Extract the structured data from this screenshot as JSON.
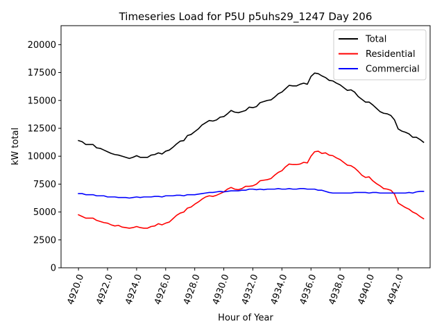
{
  "chart_data": {
    "type": "line",
    "title": "Timeseries Load for P5U p5uhs29_1247  Day 206",
    "xlabel": "Hour of Year",
    "ylabel": "kW total",
    "xlim": [
      4918.8,
      4944.2
    ],
    "ylim": [
      0,
      21700
    ],
    "xticks": [
      4920,
      4922,
      4924,
      4926,
      4928,
      4930,
      4932,
      4934,
      4936,
      4938,
      4940,
      4942
    ],
    "xtick_labels": [
      "4920.0",
      "4922.0",
      "4924.0",
      "4926.0",
      "4928.0",
      "4930.0",
      "4932.0",
      "4934.0",
      "4936.0",
      "4938.0",
      "4940.0",
      "4942.0"
    ],
    "yticks": [
      0,
      2500,
      5000,
      7500,
      10000,
      12500,
      15000,
      17500,
      20000
    ],
    "ytick_labels": [
      "0",
      "2500",
      "5000",
      "7500",
      "10000",
      "12500",
      "15000",
      "17500",
      "20000"
    ],
    "legend_position": "top-right",
    "x": [
      4920.0,
      4920.25,
      4920.5,
      4920.75,
      4921.0,
      4921.25,
      4921.5,
      4921.75,
      4922.0,
      4922.25,
      4922.5,
      4922.75,
      4923.0,
      4923.25,
      4923.5,
      4923.75,
      4924.0,
      4924.25,
      4924.5,
      4924.75,
      4925.0,
      4925.25,
      4925.5,
      4925.75,
      4926.0,
      4926.25,
      4926.5,
      4926.75,
      4927.0,
      4927.25,
      4927.5,
      4927.75,
      4928.0,
      4928.25,
      4928.5,
      4928.75,
      4929.0,
      4929.25,
      4929.5,
      4929.75,
      4930.0,
      4930.25,
      4930.5,
      4930.75,
      4931.0,
      4931.25,
      4931.5,
      4931.75,
      4932.0,
      4932.25,
      4932.5,
      4932.75,
      4933.0,
      4933.25,
      4933.5,
      4933.75,
      4934.0,
      4934.25,
      4934.5,
      4934.75,
      4935.0,
      4935.25,
      4935.5,
      4935.75,
      4936.0,
      4936.25,
      4936.5,
      4936.75,
      4937.0,
      4937.25,
      4937.5,
      4937.75,
      4938.0,
      4938.25,
      4938.5,
      4938.75,
      4939.0,
      4939.25,
      4939.5,
      4939.75,
      4940.0,
      4940.25,
      4940.5,
      4940.75,
      4941.0,
      4941.25,
      4941.5,
      4941.75,
      4942.0,
      4942.25,
      4942.5,
      4942.75,
      4943.0,
      4943.25,
      4943.5,
      4943.75
    ],
    "series": [
      {
        "name": "Total",
        "color": "#000000",
        "values": [
          11400,
          11300,
          11050,
          11050,
          11050,
          10750,
          10700,
          10550,
          10400,
          10250,
          10150,
          10100,
          10000,
          9900,
          9800,
          9900,
          10050,
          9900,
          9900,
          9900,
          10100,
          10150,
          10300,
          10200,
          10450,
          10550,
          10800,
          11100,
          11350,
          11400,
          11850,
          11950,
          12200,
          12450,
          12800,
          13000,
          13200,
          13150,
          13250,
          13500,
          13550,
          13800,
          14100,
          13950,
          13900,
          14000,
          14100,
          14400,
          14350,
          14450,
          14800,
          14900,
          15000,
          15050,
          15300,
          15600,
          15750,
          16050,
          16350,
          16300,
          16300,
          16450,
          16550,
          16450,
          17150,
          17450,
          17400,
          17200,
          17050,
          16800,
          16750,
          16550,
          16400,
          16150,
          15900,
          15950,
          15750,
          15350,
          15100,
          14850,
          14850,
          14600,
          14300,
          14000,
          13850,
          13800,
          13650,
          13250,
          12450,
          12250,
          12150,
          12000,
          11700,
          11700,
          11500,
          11250
        ]
      },
      {
        "name": "Residential",
        "color": "#ff0000",
        "values": [
          4750,
          4600,
          4450,
          4450,
          4450,
          4250,
          4150,
          4050,
          4000,
          3850,
          3750,
          3800,
          3650,
          3600,
          3550,
          3600,
          3700,
          3600,
          3550,
          3550,
          3700,
          3750,
          3950,
          3850,
          4000,
          4100,
          4400,
          4700,
          4900,
          5000,
          5350,
          5450,
          5700,
          5900,
          6150,
          6350,
          6450,
          6400,
          6500,
          6650,
          6800,
          7050,
          7200,
          7050,
          7000,
          7100,
          7300,
          7300,
          7350,
          7500,
          7800,
          7850,
          7900,
          8000,
          8300,
          8550,
          8700,
          9050,
          9300,
          9250,
          9250,
          9300,
          9450,
          9400,
          10000,
          10400,
          10450,
          10250,
          10300,
          10100,
          10050,
          9850,
          9700,
          9450,
          9200,
          9150,
          8950,
          8650,
          8300,
          8100,
          8150,
          7800,
          7550,
          7350,
          7100,
          7050,
          6950,
          6600,
          5800,
          5600,
          5400,
          5250,
          5000,
          4850,
          4600,
          4400
        ]
      },
      {
        "name": "Commercial",
        "color": "#0000ff",
        "values": [
          6650,
          6650,
          6550,
          6550,
          6550,
          6450,
          6450,
          6450,
          6350,
          6350,
          6350,
          6300,
          6300,
          6300,
          6250,
          6300,
          6350,
          6300,
          6350,
          6350,
          6350,
          6400,
          6400,
          6350,
          6450,
          6450,
          6450,
          6500,
          6500,
          6450,
          6550,
          6550,
          6550,
          6600,
          6650,
          6700,
          6750,
          6750,
          6800,
          6850,
          6800,
          6850,
          6900,
          6900,
          6900,
          6950,
          6950,
          7050,
          7050,
          7000,
          7050,
          7000,
          7050,
          7050,
          7050,
          7100,
          7050,
          7050,
          7100,
          7050,
          7050,
          7100,
          7100,
          7050,
          7050,
          7050,
          6950,
          6950,
          6850,
          6750,
          6700,
          6700,
          6700,
          6700,
          6700,
          6700,
          6750,
          6750,
          6750,
          6750,
          6700,
          6750,
          6750,
          6700,
          6700,
          6700,
          6700,
          6700,
          6700,
          6700,
          6700,
          6750,
          6700,
          6800,
          6850,
          6850
        ]
      }
    ]
  }
}
